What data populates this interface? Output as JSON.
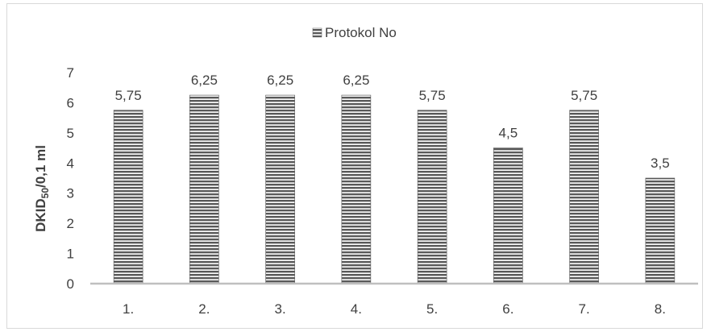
{
  "chart_data": {
    "type": "bar",
    "categories": [
      "1.",
      "2.",
      "3.",
      "4.",
      "5.",
      "6.",
      "7.",
      "8."
    ],
    "series": [
      {
        "name": "Protokol No",
        "values": [
          5.75,
          6.25,
          6.25,
          6.25,
          5.75,
          4.5,
          5.75,
          3.5
        ]
      }
    ],
    "data_labels": [
      "5,75",
      "6,25",
      "6,25",
      "6,25",
      "5,75",
      "4,5",
      "5,75",
      "3,5"
    ],
    "ylabel": {
      "main": "DKID",
      "sub": "50",
      "rest": "/0,1 ml"
    },
    "ylim": [
      0,
      7
    ],
    "yticks": [
      "0",
      "1",
      "2",
      "3",
      "4",
      "5",
      "6",
      "7"
    ],
    "grid": false,
    "legend_position": "top",
    "bar_color": "#595959",
    "bar_fill": "horizontal-stripes"
  }
}
